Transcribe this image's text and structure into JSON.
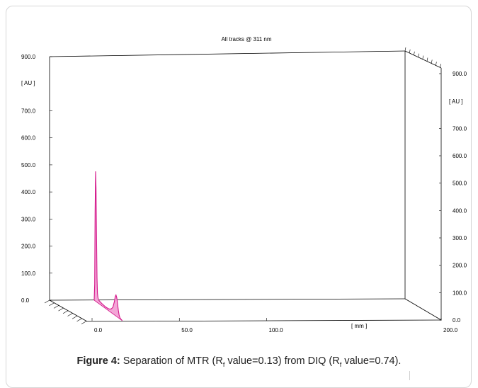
{
  "chart_data": {
    "type": "line",
    "title": "All tracks @ 311 nm",
    "ylabel": "[ AU ]",
    "ylabel_right": "[ AU ]",
    "xlabel": "[ mm ]",
    "xlim": [
      0,
      200
    ],
    "ylim": [
      0,
      900
    ],
    "y_ticks": [
      "0.0",
      "100.0",
      "200.0",
      "300.0",
      "400.0",
      "500.0",
      "600.0",
      "700.0",
      "900.0"
    ],
    "y_ticks_right": [
      "0.0",
      "100.0",
      "200.0",
      "300.0",
      "400.0",
      "500.0",
      "600.0",
      "700.0",
      "900.0"
    ],
    "x_ticks": [
      "0.0",
      "50.0",
      "100.0",
      "200.0"
    ],
    "series": [
      {
        "color": "#d4168a",
        "fill": "#f3a6d6",
        "x": [
          0,
          0.3,
          0.6,
          0.9,
          1.2,
          1.5,
          1.8,
          2.1,
          2.4,
          2.7,
          3.0,
          4.0,
          5.0,
          6.0,
          7.0,
          8.0,
          9.0,
          10.0,
          11.0,
          12.0,
          13.0,
          13.5,
          14.0,
          14.5,
          15.0,
          15.5,
          16.0,
          16.5,
          17.0,
          18.0
        ],
        "y": [
          0,
          60,
          330,
          480,
          420,
          250,
          90,
          35,
          20,
          15,
          12,
          10,
          8,
          7,
          6,
          6,
          7,
          9,
          14,
          24,
          50,
          70,
          78,
          70,
          50,
          28,
          12,
          5,
          2,
          0
        ]
      }
    ]
  },
  "caption": {
    "label": "Figure 4:",
    "text_1": "Separation of MTR (R",
    "sub_1": "f",
    "text_2": " value=0.13) from DIQ (R",
    "sub_2": "f",
    "text_3": " value=0.74)."
  }
}
